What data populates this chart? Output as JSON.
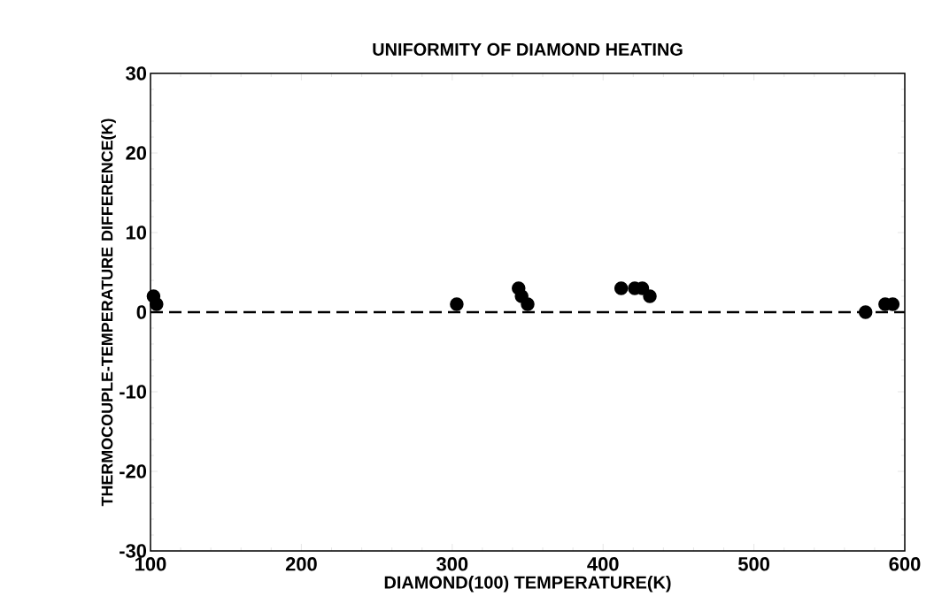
{
  "chart_data": {
    "type": "scatter",
    "title": "UNIFORMITY OF DIAMOND HEATING",
    "xlabel": "DIAMOND(100) TEMPERATURE(K)",
    "ylabel": "THERMOCOUPLE-TEMPERATURE DIFFERENCE(K)",
    "x": [
      102,
      104,
      303,
      344,
      346,
      350,
      412,
      421,
      426,
      431,
      574,
      587,
      592
    ],
    "values": [
      2,
      1,
      1,
      3,
      2,
      1,
      3,
      3,
      3,
      2,
      0,
      1,
      1
    ],
    "color": "#000000",
    "marker": "circle",
    "xlim": [
      100,
      600
    ],
    "xticks": [
      100,
      200,
      300,
      400,
      500,
      600
    ],
    "ylim": [
      -30,
      30
    ],
    "yticks": [
      -30,
      -20,
      -10,
      0,
      10,
      20,
      30
    ],
    "ref_lines": [
      {
        "axis": "y",
        "value": 0,
        "color": "#000000",
        "line_style": "dashed"
      }
    ]
  }
}
